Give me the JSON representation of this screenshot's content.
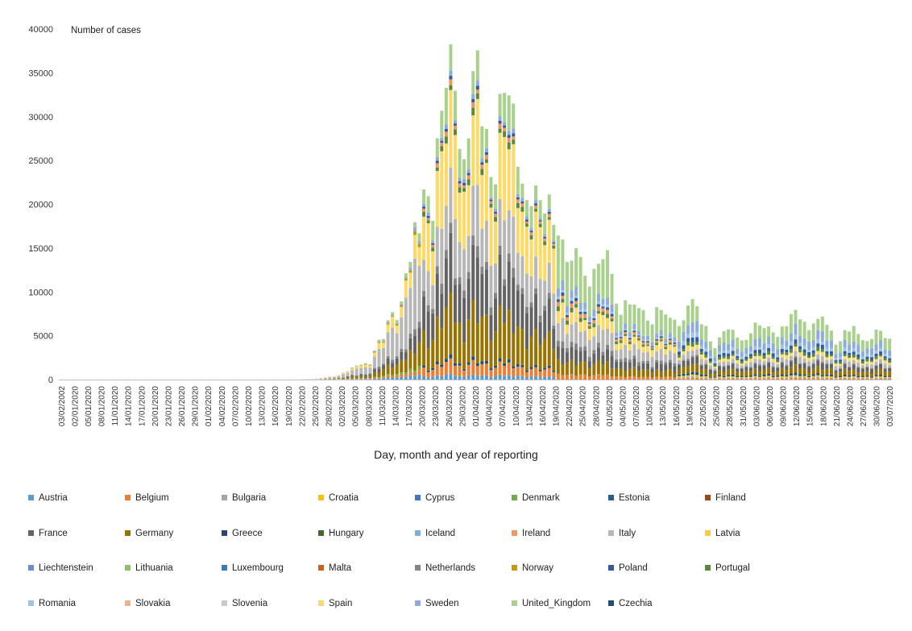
{
  "chart_data": {
    "type": "bar",
    "stacked": true,
    "title": "",
    "ylabel": "Number of cases",
    "xlabel": "Day, month and year of reporting",
    "ylim": [
      0,
      40000
    ],
    "yticks": [
      0,
      5000,
      10000,
      15000,
      20000,
      25000,
      30000,
      35000,
      40000
    ],
    "x_tick_labels": [
      "03/02/2002",
      "02/01/2020",
      "05/01/2020",
      "08/01/2020",
      "11/01/2020",
      "14/01/2020",
      "17/01/2020",
      "20/01/2020",
      "23/01/2020",
      "26/01/2020",
      "29/01/2020",
      "01/02/2020",
      "04/02/2020",
      "07/02/2020",
      "10/02/2020",
      "13/02/2020",
      "16/02/2020",
      "19/02/2020",
      "22/02/2020",
      "25/02/2020",
      "28/02/2020",
      "02/03/2020",
      "05/03/2020",
      "08/03/2020",
      "11/03/2020",
      "14/03/2020",
      "17/03/2020",
      "20/03/2020",
      "23/03/2020",
      "26/03/2020",
      "29/03/2020",
      "01/04/2020",
      "04/04/2020",
      "07/04/2020",
      "10/04/2020",
      "13/04/2020",
      "16/04/2020",
      "19/04/2020",
      "22/04/2020",
      "25/04/2020",
      "28/04/2020",
      "01/05/2020",
      "04/05/2020",
      "07/05/2020",
      "10/05/2020",
      "13/05/2020",
      "16/05/2020",
      "19/05/2020",
      "22/05/2020",
      "25/05/2020",
      "28/05/2020",
      "31/05/2020",
      "03/06/2020",
      "06/06/2020",
      "09/06/2020",
      "12/06/2020",
      "15/06/2020",
      "18/06/2020",
      "21/06/2020",
      "24/06/2020",
      "27/06/2020",
      "30/06/2020",
      "03/07/2020"
    ],
    "bar_count": 186,
    "totals_by_label": [
      0,
      0,
      0,
      0,
      0,
      0,
      0,
      0,
      0,
      0,
      0,
      0,
      0,
      0,
      0,
      0,
      0,
      0,
      50,
      120,
      300,
      700,
      1300,
      2300,
      4500,
      8000,
      12000,
      21000,
      25000,
      34000,
      29500,
      34500,
      26000,
      30500,
      29500,
      22500,
      18500,
      20000,
      13000,
      14500,
      12000,
      13200,
      9000,
      8000,
      7500,
      7800,
      6500,
      9400,
      6000,
      4600,
      5500,
      5000,
      5800,
      6100,
      6000,
      7200,
      7000,
      6500,
      5000,
      5500,
      4800,
      5800,
      4300
    ],
    "series": [
      {
        "name": "Austria",
        "color": "#5b9bd5"
      },
      {
        "name": "Belgium",
        "color": "#ed7d31"
      },
      {
        "name": "Bulgaria",
        "color": "#a5a5a5"
      },
      {
        "name": "Croatia",
        "color": "#ffc000"
      },
      {
        "name": "Cyprus",
        "color": "#4472c4"
      },
      {
        "name": "Denmark",
        "color": "#70ad47"
      },
      {
        "name": "Estonia",
        "color": "#255e91"
      },
      {
        "name": "Finland",
        "color": "#9e480e"
      },
      {
        "name": "France",
        "color": "#636363"
      },
      {
        "name": "Germany",
        "color": "#997300"
      },
      {
        "name": "Greece",
        "color": "#264478"
      },
      {
        "name": "Hungary",
        "color": "#43682b"
      },
      {
        "name": "Iceland",
        "color": "#7cafdd"
      },
      {
        "name": "Ireland",
        "color": "#f1975a"
      },
      {
        "name": "Italy",
        "color": "#b7b7b7"
      },
      {
        "name": "Latvia",
        "color": "#ffcd33"
      },
      {
        "name": "Liechtenstein",
        "color": "#698ed0"
      },
      {
        "name": "Lithuania",
        "color": "#8cc168"
      },
      {
        "name": "Luxembourg",
        "color": "#327dc2"
      },
      {
        "name": "Malta",
        "color": "#d26012"
      },
      {
        "name": "Netherlands",
        "color": "#848484"
      },
      {
        "name": "Norway",
        "color": "#cc9a00"
      },
      {
        "name": "Poland",
        "color": "#335aa1"
      },
      {
        "name": "Portugal",
        "color": "#5a8a39"
      },
      {
        "name": "Romania",
        "color": "#9dc3e6"
      },
      {
        "name": "Slovakia",
        "color": "#f4b183"
      },
      {
        "name": "Slovenia",
        "color": "#c9c9c9"
      },
      {
        "name": "Spain",
        "color": "#ffd966"
      },
      {
        "name": "Sweden",
        "color": "#8faadc"
      },
      {
        "name": "United_Kingdom",
        "color": "#a9d18e"
      },
      {
        "name": "Czechia",
        "color": "#1f4e79"
      }
    ]
  }
}
